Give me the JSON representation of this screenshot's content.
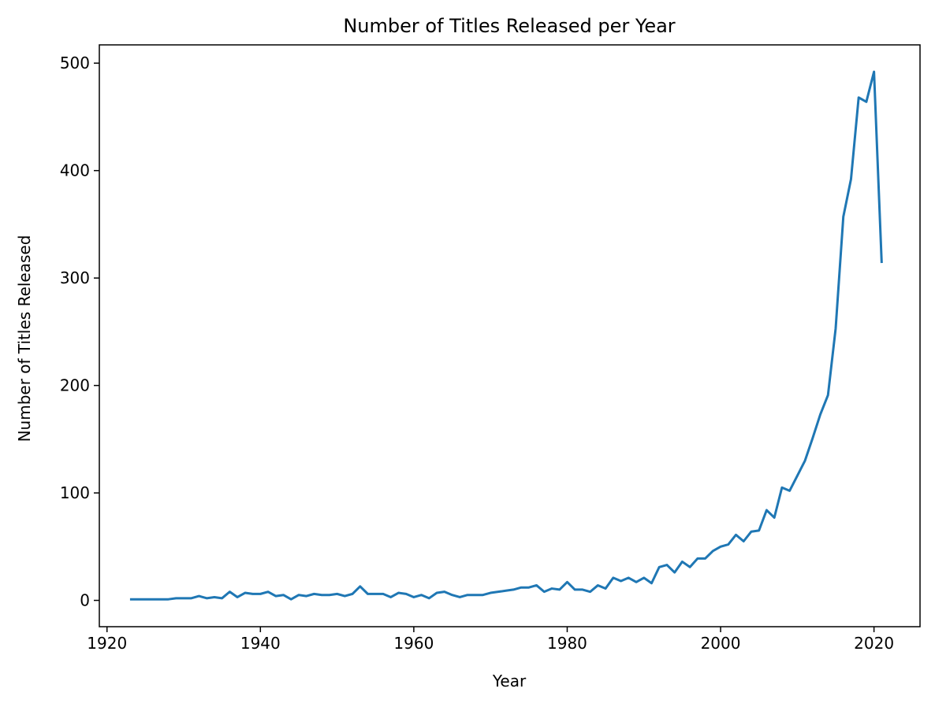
{
  "chart_data": {
    "type": "line",
    "title": "Number of Titles Released per Year",
    "xlabel": "Year",
    "ylabel": "Number of Titles Released",
    "xlim": [
      1919,
      2026
    ],
    "ylim": [
      -24.5,
      517
    ],
    "xticks": [
      1920,
      1940,
      1960,
      1980,
      2000,
      2020
    ],
    "yticks": [
      0,
      100,
      200,
      300,
      400,
      500
    ],
    "grid": false,
    "color": "#1f77b4",
    "series": [
      {
        "x": [
          1923,
          1924,
          1925,
          1926,
          1927,
          1928,
          1929,
          1930,
          1931,
          1932,
          1933,
          1934,
          1935,
          1936,
          1937,
          1938,
          1939,
          1940,
          1941,
          1942,
          1943,
          1944,
          1945,
          1946,
          1947,
          1948,
          1949,
          1950,
          1951,
          1952,
          1953,
          1954,
          1955,
          1956,
          1957,
          1958,
          1959,
          1960,
          1961,
          1962,
          1963,
          1964,
          1965,
          1966,
          1967,
          1968,
          1969,
          1970,
          1971,
          1972,
          1973,
          1974,
          1975,
          1976,
          1977,
          1978,
          1979,
          1980,
          1981,
          1982,
          1983,
          1984,
          1985,
          1986,
          1987,
          1988,
          1989,
          1990,
          1991,
          1992,
          1993,
          1994,
          1995,
          1996,
          1997,
          1998,
          1999,
          2000,
          2001,
          2002,
          2003,
          2004,
          2005,
          2006,
          2007,
          2008,
          2009,
          2010,
          2011,
          2012,
          2013,
          2014,
          2015,
          2016,
          2017,
          2018,
          2019,
          2020,
          2021
        ],
        "y": [
          1,
          1,
          1,
          1,
          1,
          1,
          2,
          2,
          2,
          4,
          2,
          3,
          2,
          8,
          3,
          7,
          6,
          6,
          8,
          4,
          5,
          1,
          5,
          4,
          6,
          5,
          5,
          6,
          4,
          6,
          13,
          6,
          6,
          6,
          3,
          7,
          6,
          3,
          5,
          2,
          7,
          8,
          5,
          3,
          5,
          5,
          5,
          7,
          8,
          9,
          10,
          12,
          12,
          14,
          8,
          11,
          10,
          17,
          10,
          10,
          8,
          14,
          11,
          21,
          18,
          21,
          17,
          21,
          16,
          31,
          33,
          26,
          36,
          31,
          39,
          39,
          46,
          50,
          52,
          61,
          55,
          64,
          65,
          84,
          77,
          105,
          102,
          116,
          130,
          151,
          173,
          191,
          253,
          357,
          392,
          468,
          464,
          492,
          314
        ]
      }
    ]
  }
}
